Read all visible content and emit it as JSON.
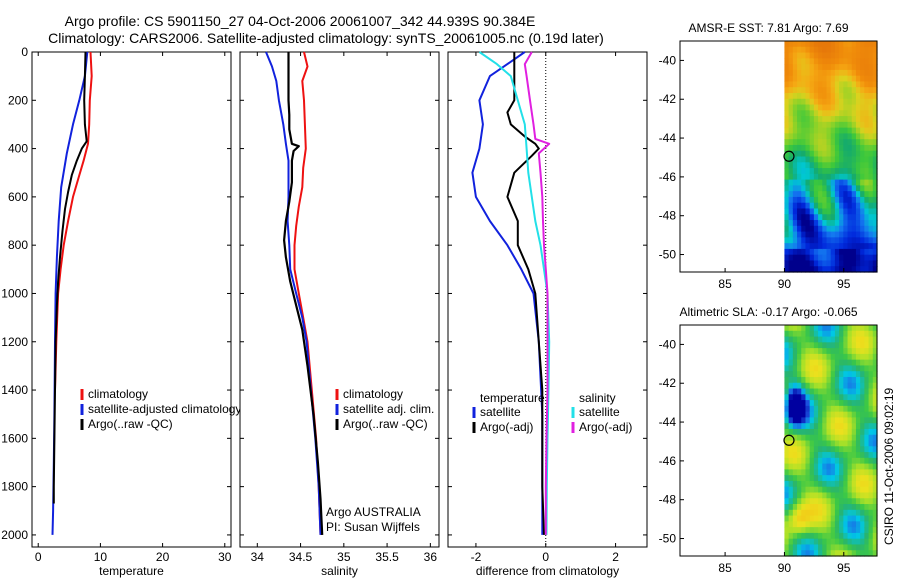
{
  "header": {
    "line1": "Argo profile: CS 5901150_27 04-Oct-2006 20061007_342 44.939S 90.384E",
    "line2": "Climatology: CARS2006. Satellite-adjusted climatology: synTS_20061005.nc (0.19d later)"
  },
  "colors": {
    "climatology": "#ee1111",
    "satellite": "#1122dd",
    "argo": "#000000",
    "sat_cyan": "#22e0e8",
    "argo_magenta": "#e020e0"
  },
  "chart_data": [
    {
      "id": "temperature",
      "type": "line",
      "xlabel": "temperature",
      "xlim": [
        -1,
        31
      ],
      "ylim": [
        2050,
        0
      ],
      "xticks": [
        "0",
        "10",
        "20",
        "30"
      ],
      "yticks": [
        "0",
        "200",
        "400",
        "600",
        "800",
        "1000",
        "1200",
        "1400",
        "1600",
        "1800",
        "2000"
      ],
      "legend": [
        "climatology",
        "satellite-adjusted climatology",
        "Argo(..raw -QC)"
      ],
      "series": [
        {
          "name": "climatology",
          "color": "climatology",
          "points": [
            [
              8.4,
              0
            ],
            [
              8.6,
              100
            ],
            [
              8.3,
              200
            ],
            [
              8.2,
              300
            ],
            [
              8.0,
              380
            ],
            [
              7.3,
              450
            ],
            [
              6.5,
              520
            ],
            [
              5.6,
              600
            ],
            [
              4.8,
              700
            ],
            [
              4.1,
              800
            ],
            [
              3.6,
              900
            ],
            [
              3.2,
              1000
            ],
            [
              2.9,
              1200
            ],
            [
              2.7,
              1400
            ]
          ]
        },
        {
          "name": "satellite-adjusted climatology",
          "color": "satellite",
          "points": [
            [
              7.9,
              0
            ],
            [
              7.5,
              100
            ],
            [
              6.6,
              200
            ],
            [
              5.6,
              300
            ],
            [
              4.6,
              420
            ],
            [
              3.7,
              560
            ],
            [
              3.3,
              700
            ],
            [
              3.0,
              850
            ],
            [
              2.8,
              1000
            ],
            [
              2.7,
              1200
            ],
            [
              2.6,
              1500
            ],
            [
              2.5,
              1700
            ],
            [
              2.4,
              1900
            ],
            [
              2.3,
              2000
            ]
          ]
        },
        {
          "name": "Argo(..raw -QC)",
          "color": "argo",
          "points": [
            [
              7.6,
              0
            ],
            [
              7.5,
              100
            ],
            [
              7.4,
              200
            ],
            [
              7.5,
              300
            ],
            [
              7.8,
              370
            ],
            [
              7.0,
              400
            ],
            [
              6.2,
              450
            ],
            [
              5.4,
              510
            ],
            [
              4.8,
              580
            ],
            [
              4.3,
              650
            ],
            [
              3.9,
              740
            ],
            [
              3.5,
              850
            ],
            [
              3.2,
              950
            ],
            [
              3.0,
              1050
            ],
            [
              2.8,
              1200
            ],
            [
              2.7,
              1400
            ],
            [
              2.6,
              1600
            ],
            [
              2.5,
              1800
            ],
            [
              2.5,
              1870
            ]
          ]
        }
      ]
    },
    {
      "id": "salinity",
      "type": "line",
      "xlabel": "salinity",
      "xlim": [
        33.8,
        36.1
      ],
      "ylim": [
        2050,
        0
      ],
      "xticks": [
        "34",
        "34.5",
        "35",
        "35.5",
        "36"
      ],
      "legend": [
        "climatology",
        "satellite adj. clim.",
        "Argo(..raw -QC)"
      ],
      "annotation": [
        "Argo AUSTRALIA",
        "PI: Susan Wijffels"
      ],
      "series": [
        {
          "name": "climatology",
          "color": "climatology",
          "points": [
            [
              34.54,
              0
            ],
            [
              34.58,
              60
            ],
            [
              34.52,
              120
            ],
            [
              34.54,
              200
            ],
            [
              34.55,
              300
            ],
            [
              34.56,
              400
            ],
            [
              34.53,
              480
            ],
            [
              34.52,
              560
            ],
            [
              34.48,
              640
            ],
            [
              34.45,
              720
            ],
            [
              34.43,
              800
            ],
            [
              34.43,
              900
            ],
            [
              34.48,
              1000
            ],
            [
              34.53,
              1100
            ],
            [
              34.58,
              1200
            ],
            [
              34.63,
              1400
            ],
            [
              34.68,
              1600
            ],
            [
              34.71,
              1800
            ],
            [
              34.73,
              2000
            ]
          ]
        },
        {
          "name": "satellite adj. clim.",
          "color": "satellite",
          "points": [
            [
              34.1,
              0
            ],
            [
              34.17,
              60
            ],
            [
              34.22,
              120
            ],
            [
              34.25,
              200
            ],
            [
              34.3,
              300
            ],
            [
              34.33,
              380
            ],
            [
              34.36,
              450
            ],
            [
              34.36,
              520
            ],
            [
              34.36,
              600
            ],
            [
              34.35,
              700
            ],
            [
              34.37,
              800
            ],
            [
              34.38,
              900
            ],
            [
              34.45,
              1000
            ],
            [
              34.52,
              1100
            ],
            [
              34.57,
              1200
            ],
            [
              34.62,
              1400
            ],
            [
              34.67,
              1600
            ],
            [
              34.71,
              1800
            ],
            [
              34.73,
              2000
            ]
          ]
        },
        {
          "name": "Argo(..raw -QC)",
          "color": "argo",
          "points": [
            [
              34.36,
              0
            ],
            [
              34.36,
              100
            ],
            [
              34.36,
              200
            ],
            [
              34.37,
              260
            ],
            [
              34.37,
              320
            ],
            [
              34.4,
              380
            ],
            [
              34.48,
              390
            ],
            [
              34.42,
              410
            ],
            [
              34.4,
              450
            ],
            [
              34.4,
              540
            ],
            [
              34.37,
              620
            ],
            [
              34.33,
              700
            ],
            [
              34.31,
              780
            ],
            [
              34.33,
              850
            ],
            [
              34.38,
              950
            ],
            [
              34.45,
              1050
            ],
            [
              34.52,
              1150
            ],
            [
              34.58,
              1300
            ],
            [
              34.65,
              1500
            ],
            [
              34.7,
              1700
            ],
            [
              34.73,
              1850
            ],
            [
              34.75,
              2000
            ]
          ]
        }
      ]
    },
    {
      "id": "difference",
      "type": "line",
      "xlabel": "difference from climatology",
      "xlim": [
        -2.8,
        2.9
      ],
      "ylim": [
        2050,
        0
      ],
      "xticks": [
        "-2",
        "0",
        "2"
      ],
      "zero_line": true,
      "legend_columns": [
        {
          "heading": "temperature",
          "items": [
            "satellite",
            "Argo(-adj)"
          ]
        },
        {
          "heading": "salinity",
          "items": [
            "satellite",
            "Argo(-adj)"
          ]
        }
      ],
      "series": [
        {
          "name": "temperature satellite",
          "color": "satellite",
          "points": [
            [
              -0.6,
              0
            ],
            [
              -1.1,
              50
            ],
            [
              -1.6,
              100
            ],
            [
              -1.9,
              200
            ],
            [
              -1.8,
              300
            ],
            [
              -1.9,
              400
            ],
            [
              -2.1,
              500
            ],
            [
              -2.0,
              600
            ],
            [
              -1.6,
              700
            ],
            [
              -1.1,
              800
            ],
            [
              -0.7,
              900
            ],
            [
              -0.35,
              1000
            ],
            [
              -0.2,
              1200
            ],
            [
              -0.1,
              1500
            ],
            [
              -0.1,
              1800
            ],
            [
              -0.1,
              2000
            ]
          ]
        },
        {
          "name": "temperature Argo(-adj)",
          "color": "argo",
          "points": [
            [
              -0.9,
              0
            ],
            [
              -0.9,
              100
            ],
            [
              -0.9,
              200
            ],
            [
              -1.1,
              250
            ],
            [
              -1.0,
              300
            ],
            [
              -0.6,
              350
            ],
            [
              -0.3,
              380
            ],
            [
              -0.2,
              400
            ],
            [
              -0.4,
              430
            ],
            [
              -0.9,
              500
            ],
            [
              -1.1,
              600
            ],
            [
              -0.8,
              700
            ],
            [
              -0.8,
              800
            ],
            [
              -0.5,
              900
            ],
            [
              -0.3,
              1000
            ],
            [
              -0.2,
              1200
            ],
            [
              -0.1,
              1400
            ],
            [
              -0.1,
              1600
            ],
            [
              -0.1,
              1800
            ],
            [
              -0.05,
              2000
            ]
          ]
        },
        {
          "name": "salinity satellite",
          "color": "sat_cyan",
          "points": [
            [
              -1.9,
              0
            ],
            [
              -1.4,
              50
            ],
            [
              -1.0,
              100
            ],
            [
              -0.8,
              200
            ],
            [
              -0.6,
              300
            ],
            [
              -0.55,
              400
            ],
            [
              -0.5,
              500
            ],
            [
              -0.4,
              600
            ],
            [
              -0.3,
              700
            ],
            [
              -0.15,
              800
            ],
            [
              -0.05,
              900
            ],
            [
              0.05,
              1000
            ],
            [
              0.1,
              1200
            ],
            [
              0.08,
              1400
            ],
            [
              0.05,
              1600
            ],
            [
              0.03,
              1800
            ],
            [
              0.02,
              2000
            ]
          ]
        },
        {
          "name": "salinity Argo(-adj)",
          "color": "argo_magenta",
          "points": [
            [
              -0.4,
              0
            ],
            [
              -0.6,
              50
            ],
            [
              -0.55,
              100
            ],
            [
              -0.45,
              200
            ],
            [
              -0.35,
              300
            ],
            [
              -0.3,
              360
            ],
            [
              0.1,
              380
            ],
            [
              -0.2,
              420
            ],
            [
              -0.15,
              500
            ],
            [
              -0.1,
              600
            ],
            [
              -0.08,
              700
            ],
            [
              -0.05,
              800
            ],
            [
              0.0,
              900
            ],
            [
              0.05,
              1000
            ],
            [
              0.05,
              1200
            ],
            [
              0.05,
              1400
            ],
            [
              0.02,
              1600
            ],
            [
              0.0,
              1800
            ],
            [
              0.0,
              2000
            ]
          ]
        }
      ]
    }
  ],
  "maps": [
    {
      "id": "sst",
      "title": "AMSR-E SST: 7.81 Argo: 7.69",
      "yticks": [
        "-40",
        "-42",
        "-44",
        "-46",
        "-48",
        "-50"
      ],
      "xticks": [
        "85",
        "90",
        "95"
      ],
      "palette": "sst",
      "marker": {
        "lon": 90.384,
        "lat": -44.939
      }
    },
    {
      "id": "sla",
      "title": "Altimetric SLA: -0.17 Argo: -0.065",
      "yticks": [
        "-40",
        "-42",
        "-44",
        "-46",
        "-48",
        "-50"
      ],
      "xticks": [
        "85",
        "90",
        "95"
      ],
      "palette": "sla",
      "marker": {
        "lon": 90.384,
        "lat": -44.939
      }
    }
  ],
  "footer": {
    "stamp": "CSIRO 11-Oct-2006 09:02:19"
  }
}
